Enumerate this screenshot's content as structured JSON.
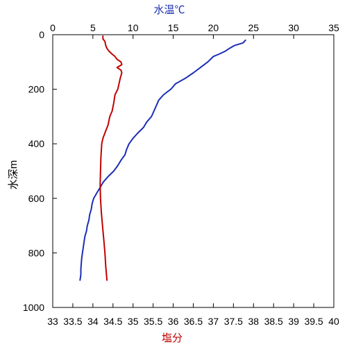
{
  "chart_data": {
    "type": "line",
    "top_axis": {
      "label": "水温℃",
      "range": [
        0,
        35
      ],
      "ticks": [
        "0",
        "5",
        "10",
        "15",
        "20",
        "25",
        "30",
        "35"
      ],
      "color": "#1a2eb5"
    },
    "bottom_axis": {
      "label": "塩分",
      "range": [
        33,
        40
      ],
      "ticks": [
        "33",
        "33.5",
        "34",
        "34.5",
        "35",
        "35.5",
        "36",
        "36.5",
        "37",
        "37.5",
        "38",
        "38.5",
        "39",
        "39.5",
        "40"
      ],
      "color": "#c00000"
    },
    "left_axis": {
      "label": "水深m",
      "range": [
        0,
        1000
      ],
      "inverted": true,
      "ticks": [
        "0",
        "200",
        "400",
        "600",
        "800",
        "1000"
      ]
    },
    "grid": false,
    "series": [
      {
        "axis": "top",
        "color": "#1a2eb5",
        "depth": [
          20,
          30,
          40,
          50,
          60,
          70,
          80,
          100,
          120,
          140,
          160,
          180,
          200,
          220,
          240,
          260,
          280,
          300,
          320,
          340,
          360,
          380,
          400,
          420,
          440,
          460,
          480,
          500,
          520,
          540,
          560,
          580,
          600,
          620,
          640,
          660,
          680,
          700,
          720,
          740,
          760,
          780,
          800,
          820,
          840,
          860,
          880,
          900
        ],
        "values": [
          24.0,
          23.7,
          22.6,
          22.0,
          21.5,
          20.8,
          20.0,
          19.3,
          18.4,
          17.5,
          16.5,
          15.3,
          14.7,
          13.8,
          13.2,
          12.9,
          12.6,
          12.3,
          11.7,
          11.3,
          10.6,
          10.0,
          9.5,
          9.2,
          9.0,
          8.5,
          8.1,
          7.6,
          6.9,
          6.3,
          5.9,
          5.5,
          5.1,
          4.9,
          4.8,
          4.6,
          4.5,
          4.3,
          4.2,
          4.0,
          3.9,
          3.8,
          3.7,
          3.6,
          3.55,
          3.5,
          3.5,
          3.4
        ]
      },
      {
        "axis": "bottom",
        "color": "#c00000",
        "depth": [
          5,
          15,
          25,
          40,
          50,
          60,
          70,
          80,
          90,
          100,
          110,
          120,
          130,
          140,
          160,
          180,
          200,
          220,
          250,
          280,
          300,
          330,
          360,
          380,
          400,
          450,
          500,
          550,
          600,
          650,
          700,
          750,
          800,
          850,
          900
        ],
        "values": [
          34.25,
          34.25,
          34.3,
          34.32,
          34.35,
          34.4,
          34.47,
          34.55,
          34.6,
          34.7,
          34.72,
          34.6,
          34.7,
          34.72,
          34.68,
          34.65,
          34.62,
          34.55,
          34.52,
          34.48,
          34.42,
          34.38,
          34.3,
          34.25,
          34.22,
          34.2,
          34.19,
          34.18,
          34.19,
          34.21,
          34.24,
          34.27,
          34.3,
          34.32,
          34.35
        ]
      }
    ]
  }
}
